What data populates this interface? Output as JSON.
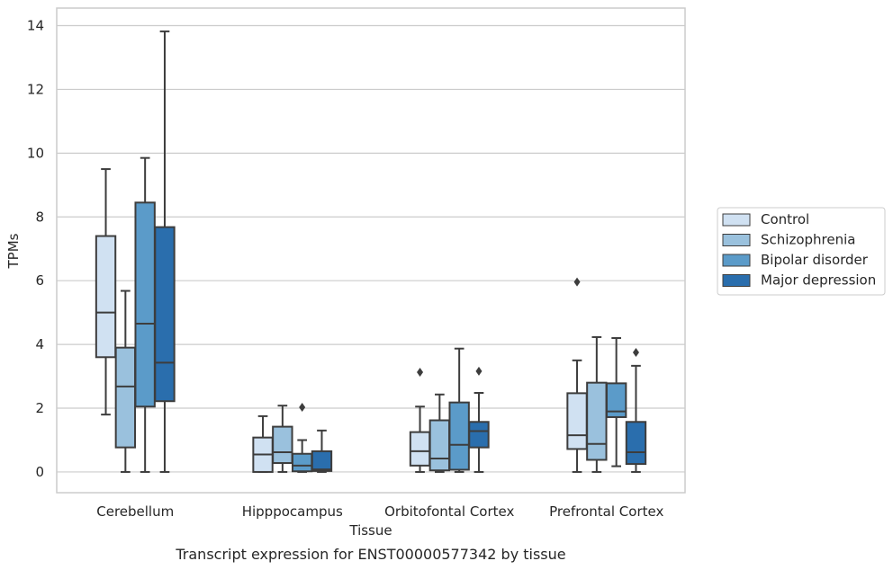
{
  "chart_data": {
    "type": "box",
    "title": "",
    "caption": "Transcript expression for ENST00000577342 by tissue",
    "xlabel": "Tissue",
    "ylabel": "TPMs",
    "ylim": [
      -0.65,
      14.55
    ],
    "yticks": [
      0,
      2,
      4,
      6,
      8,
      10,
      12,
      14
    ],
    "grid": "horizontal",
    "legend_placement": "right",
    "categories": [
      "Cerebellum",
      "Hipppocampus",
      "Orbitofontal Cortex",
      "Prefrontal Cortex"
    ],
    "series": [
      {
        "name": "Control",
        "color": "#d0e1f2",
        "boxes": [
          {
            "q1": 3.6,
            "median": 5.0,
            "q3": 7.4,
            "whislo": 1.8,
            "whishi": 9.5,
            "fliers": []
          },
          {
            "q1": 0.0,
            "median": 0.55,
            "q3": 1.08,
            "whislo": 0.0,
            "whishi": 1.75,
            "fliers": []
          },
          {
            "q1": 0.2,
            "median": 0.65,
            "q3": 1.25,
            "whislo": 0.0,
            "whishi": 2.05,
            "fliers": [
              3.13
            ]
          },
          {
            "q1": 0.72,
            "median": 1.15,
            "q3": 2.47,
            "whislo": 0.0,
            "whishi": 3.5,
            "fliers": [
              5.96
            ]
          }
        ]
      },
      {
        "name": "Schizophrenia",
        "color": "#9ac1dd",
        "boxes": [
          {
            "q1": 0.77,
            "median": 2.68,
            "q3": 3.9,
            "whislo": 0.0,
            "whishi": 5.68,
            "fliers": []
          },
          {
            "q1": 0.28,
            "median": 0.62,
            "q3": 1.42,
            "whislo": 0.0,
            "whishi": 2.08,
            "fliers": []
          },
          {
            "q1": 0.05,
            "median": 0.42,
            "q3": 1.62,
            "whislo": 0.0,
            "whishi": 2.43,
            "fliers": []
          },
          {
            "q1": 0.38,
            "median": 0.88,
            "q3": 2.8,
            "whislo": 0.0,
            "whishi": 4.23,
            "fliers": []
          }
        ]
      },
      {
        "name": "Bipolar disorder",
        "color": "#5b9bc9",
        "boxes": [
          {
            "q1": 2.05,
            "median": 4.65,
            "q3": 8.45,
            "whislo": 0.0,
            "whishi": 9.85,
            "fliers": []
          },
          {
            "q1": 0.02,
            "median": 0.2,
            "q3": 0.57,
            "whislo": 0.0,
            "whishi": 1.0,
            "fliers": [
              2.03
            ]
          },
          {
            "q1": 0.07,
            "median": 0.85,
            "q3": 2.18,
            "whislo": 0.0,
            "whishi": 3.87,
            "fliers": []
          },
          {
            "q1": 1.72,
            "median": 1.9,
            "q3": 2.78,
            "whislo": 0.18,
            "whishi": 4.2,
            "fliers": []
          }
        ]
      },
      {
        "name": "Major depression",
        "color": "#2a6ead",
        "boxes": [
          {
            "q1": 2.22,
            "median": 3.43,
            "q3": 7.68,
            "whislo": 0.0,
            "whishi": 13.82,
            "fliers": []
          },
          {
            "q1": 0.03,
            "median": 0.08,
            "q3": 0.65,
            "whislo": 0.0,
            "whishi": 1.3,
            "fliers": []
          },
          {
            "q1": 0.77,
            "median": 1.28,
            "q3": 1.57,
            "whislo": 0.0,
            "whishi": 2.48,
            "fliers": [
              3.16
            ]
          },
          {
            "q1": 0.25,
            "median": 0.62,
            "q3": 1.57,
            "whislo": 0.0,
            "whishi": 3.33,
            "fliers": [
              3.75
            ]
          }
        ]
      }
    ]
  }
}
